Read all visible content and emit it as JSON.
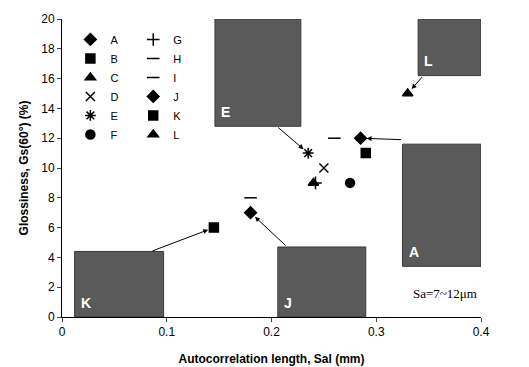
{
  "chart_data": {
    "type": "scatter",
    "x_label": "Autocorrelation length, Sal (mm)",
    "y_label": "Glossiness, Gs(60°) (%)",
    "annotation": "Sa=7~12μm",
    "xlim": [
      0,
      0.4
    ],
    "xticks": [
      0,
      0.1,
      0.2,
      0.3,
      0.4
    ],
    "ylim": [
      0,
      20
    ],
    "yticks": [
      0,
      2,
      4,
      6,
      8,
      10,
      12,
      14,
      16,
      18,
      20
    ],
    "grid": false,
    "legend": "upper left",
    "series": [
      {
        "name": "A",
        "color": "#000000",
        "marker": "diamond",
        "x": [
          0.285
        ],
        "values": [
          12
        ]
      },
      {
        "name": "B",
        "color": "#000000",
        "marker": "square",
        "x": [
          0.29
        ],
        "values": [
          11
        ]
      },
      {
        "name": "C",
        "color": "#000000",
        "marker": "triangle-up",
        "x": [
          0.24
        ],
        "values": [
          9
        ]
      },
      {
        "name": "D",
        "color": "#000000",
        "marker": "x-thin-open",
        "x": [
          0.25
        ],
        "values": [
          10
        ]
      },
      {
        "name": "E",
        "color": "#000000",
        "marker": "asterisk-open",
        "x": [
          0.235
        ],
        "values": [
          11
        ]
      },
      {
        "name": "F",
        "color": "#000000",
        "marker": "circle",
        "x": [
          0.275
        ],
        "values": [
          9
        ]
      },
      {
        "name": "G",
        "color": "#000000",
        "marker": "cross-thin-open",
        "x": [
          0.242
        ],
        "values": [
          9
        ]
      },
      {
        "name": "H",
        "color": "#000000",
        "marker": "line-ew-open",
        "x": [
          0.26
        ],
        "values": [
          12
        ]
      },
      {
        "name": "I",
        "color": "#000000",
        "marker": "line-ew-open",
        "x": [
          0.18
        ],
        "values": [
          8
        ]
      },
      {
        "name": "J",
        "color": "#000000",
        "marker": "diamond",
        "x": [
          0.18
        ],
        "values": [
          7
        ]
      },
      {
        "name": "K",
        "color": "#000000",
        "marker": "square",
        "x": [
          0.145
        ],
        "values": [
          6
        ]
      },
      {
        "name": "L",
        "color": "#000000",
        "marker": "triangle-up",
        "x": [
          0.33
        ],
        "values": [
          15
        ]
      }
    ],
    "insets": [
      {
        "label": "E",
        "target": "E"
      },
      {
        "label": "L",
        "target": "L"
      },
      {
        "label": "A",
        "target": "A"
      },
      {
        "label": "K",
        "target": "K"
      },
      {
        "label": "J",
        "target": "J"
      }
    ]
  }
}
